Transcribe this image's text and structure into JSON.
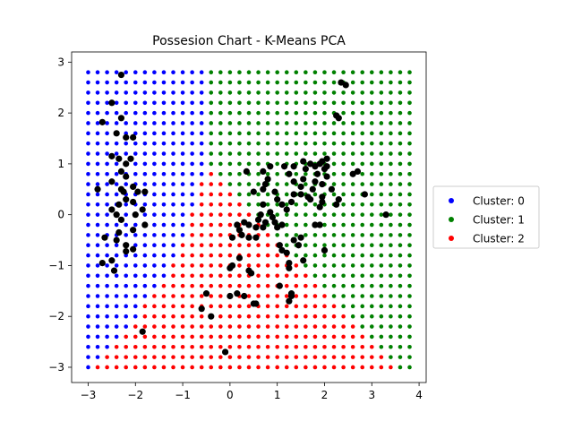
{
  "chart_data": {
    "type": "scatter",
    "title": "Possesion Chart - K-Means PCA",
    "xlabel": "",
    "ylabel": "",
    "xlim": [
      -3.35,
      4.15
    ],
    "ylim": [
      -3.3,
      3.2
    ],
    "xticks": [
      -3,
      -2,
      -1,
      0,
      1,
      2,
      3,
      4
    ],
    "yticks": [
      -3,
      -2,
      -1,
      0,
      1,
      2,
      3
    ],
    "grid": false,
    "legend_position": "right",
    "grid_sampling": {
      "x_start": -3.0,
      "x_step": 0.2,
      "x_count": 35,
      "y_start": -3.0,
      "y_step": 0.2,
      "y_count": 30
    },
    "series": [
      {
        "name": "Cluster: 0",
        "color": "#0000ff"
      },
      {
        "name": "Cluster: 1",
        "color": "#008000"
      },
      {
        "name": "Cluster: 2",
        "color": "#ff0000"
      }
    ],
    "centroid_color": "#000000",
    "data_points": [
      [
        -2.3,
        2.75
      ],
      [
        -2.5,
        2.2
      ],
      [
        -2.7,
        1.82
      ],
      [
        -2.3,
        1.9
      ],
      [
        -2.2,
        1.52
      ],
      [
        -2.05,
        1.52
      ],
      [
        -2.4,
        1.6
      ],
      [
        -2.5,
        1.15
      ],
      [
        -2.35,
        1.1
      ],
      [
        -2.2,
        1.0
      ],
      [
        -2.1,
        1.1
      ],
      [
        -2.3,
        0.85
      ],
      [
        -2.2,
        0.75
      ],
      [
        -2.5,
        0.65
      ],
      [
        -2.3,
        0.5
      ],
      [
        -2.05,
        0.55
      ],
      [
        -2.8,
        0.5
      ],
      [
        -2.25,
        0.45
      ],
      [
        -1.95,
        0.45
      ],
      [
        -1.8,
        0.45
      ],
      [
        -2.2,
        0.3
      ],
      [
        -2.05,
        0.25
      ],
      [
        -2.35,
        0.2
      ],
      [
        -2.5,
        0.1
      ],
      [
        -2.4,
        0.0
      ],
      [
        -1.85,
        0.1
      ],
      [
        -2.0,
        0.0
      ],
      [
        -2.3,
        -0.1
      ],
      [
        -1.8,
        -0.2
      ],
      [
        -2.05,
        -0.3
      ],
      [
        -2.35,
        -0.35
      ],
      [
        -2.65,
        -0.45
      ],
      [
        -2.4,
        -0.5
      ],
      [
        -2.2,
        -0.6
      ],
      [
        -2.05,
        -0.68
      ],
      [
        -2.2,
        -0.72
      ],
      [
        -2.5,
        -0.9
      ],
      [
        -2.45,
        -1.1
      ],
      [
        -2.7,
        -0.95
      ],
      [
        -1.85,
        -2.3
      ],
      [
        -0.5,
        -1.55
      ],
      [
        -0.6,
        -1.85
      ],
      [
        -0.4,
        -2.0
      ],
      [
        -0.1,
        -2.7
      ],
      [
        0.0,
        -1.6
      ],
      [
        0.15,
        -1.55
      ],
      [
        0.3,
        -1.6
      ],
      [
        0.5,
        -1.75
      ],
      [
        0.55,
        -1.75
      ],
      [
        0.0,
        -1.05
      ],
      [
        0.05,
        -1.0
      ],
      [
        0.2,
        -0.85
      ],
      [
        0.4,
        -1.1
      ],
      [
        0.45,
        -1.15
      ],
      [
        0.05,
        -0.45
      ],
      [
        0.2,
        -0.3
      ],
      [
        0.25,
        -0.4
      ],
      [
        0.15,
        -0.2
      ],
      [
        0.3,
        -0.15
      ],
      [
        0.4,
        -0.2
      ],
      [
        0.55,
        -0.25
      ],
      [
        0.6,
        -0.1
      ],
      [
        0.65,
        0.0
      ],
      [
        0.55,
        -0.45
      ],
      [
        0.4,
        -0.45
      ],
      [
        0.75,
        -0.15
      ],
      [
        0.7,
        -0.25
      ],
      [
        0.85,
        0.05
      ],
      [
        0.9,
        -0.05
      ],
      [
        0.95,
        -0.15
      ],
      [
        1.0,
        -0.25
      ],
      [
        1.1,
        -0.2
      ],
      [
        0.7,
        0.2
      ],
      [
        1.05,
        -0.6
      ],
      [
        1.1,
        -0.7
      ],
      [
        1.2,
        -0.75
      ],
      [
        1.25,
        -0.95
      ],
      [
        1.25,
        -1.05
      ],
      [
        1.05,
        -1.4
      ],
      [
        1.3,
        -1.55
      ],
      [
        1.3,
        -1.6
      ],
      [
        1.25,
        -1.7
      ],
      [
        1.55,
        -0.9
      ],
      [
        1.5,
        -0.45
      ],
      [
        1.35,
        -0.5
      ],
      [
        1.45,
        -0.6
      ],
      [
        1.8,
        -0.2
      ],
      [
        1.9,
        -0.2
      ],
      [
        2.0,
        -0.7
      ],
      [
        0.5,
        0.45
      ],
      [
        0.7,
        0.5
      ],
      [
        0.75,
        0.6
      ],
      [
        0.95,
        0.45
      ],
      [
        1.0,
        0.3
      ],
      [
        1.1,
        0.2
      ],
      [
        1.2,
        0.1
      ],
      [
        1.3,
        0.25
      ],
      [
        1.35,
        0.4
      ],
      [
        1.5,
        0.4
      ],
      [
        1.5,
        0.55
      ],
      [
        1.55,
        0.7
      ],
      [
        1.7,
        0.3
      ],
      [
        1.75,
        0.5
      ],
      [
        1.8,
        0.65
      ],
      [
        1.85,
        0.8
      ],
      [
        1.95,
        0.6
      ],
      [
        2.0,
        0.9
      ],
      [
        2.05,
        0.75
      ],
      [
        1.95,
        0.25
      ],
      [
        1.95,
        0.35
      ],
      [
        1.9,
        0.15
      ],
      [
        2.15,
        0.5
      ],
      [
        2.3,
        0.3
      ],
      [
        2.25,
        0.2
      ],
      [
        2.05,
        0.95
      ],
      [
        1.9,
        1.0
      ],
      [
        1.55,
        1.05
      ],
      [
        1.7,
        1.0
      ],
      [
        1.6,
        0.9
      ],
      [
        1.25,
        0.8
      ],
      [
        1.15,
        0.95
      ],
      [
        0.7,
        0.85
      ],
      [
        0.8,
        0.7
      ],
      [
        1.35,
        0.95
      ],
      [
        2.6,
        0.8
      ],
      [
        2.7,
        0.85
      ],
      [
        2.85,
        0.4
      ],
      [
        3.3,
        0.0
      ],
      [
        2.35,
        2.6
      ],
      [
        2.45,
        2.55
      ],
      [
        2.25,
        1.95
      ],
      [
        2.3,
        1.9
      ],
      [
        1.95,
        1.05
      ],
      [
        2.05,
        1.1
      ],
      [
        1.8,
        0.95
      ],
      [
        1.35,
        0.65
      ],
      [
        0.85,
        0.95
      ],
      [
        1.65,
        0.35
      ],
      [
        0.35,
        0.85
      ]
    ]
  }
}
